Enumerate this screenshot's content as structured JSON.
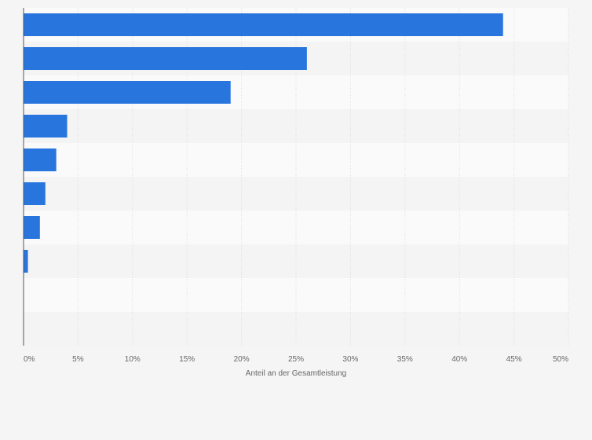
{
  "chart_data": {
    "type": "bar",
    "orientation": "horizontal",
    "categories": [
      "",
      "",
      "",
      "",
      "",
      "",
      "",
      "",
      "",
      ""
    ],
    "values": [
      44,
      26,
      19,
      4,
      3,
      2,
      1.5,
      0.4,
      0,
      0
    ],
    "xlabel": "Anteil an der Gesamtleistung",
    "ylabel": "",
    "xlim": [
      0,
      50
    ],
    "ticks": [
      0,
      5,
      10,
      15,
      20,
      25,
      30,
      35,
      40,
      45,
      50
    ],
    "tick_labels": [
      "0%",
      "5%",
      "10%",
      "15%",
      "20%",
      "25%",
      "30%",
      "35%",
      "40%",
      "45%",
      "50%"
    ],
    "grid": true,
    "legend": "none",
    "colors": {
      "bar": "#2876dd",
      "row_even": "#fafafa",
      "row_odd": "#f4f4f4",
      "grid": "#dcdcdc",
      "axis": "#555555",
      "background": "#f5f5f5"
    }
  }
}
